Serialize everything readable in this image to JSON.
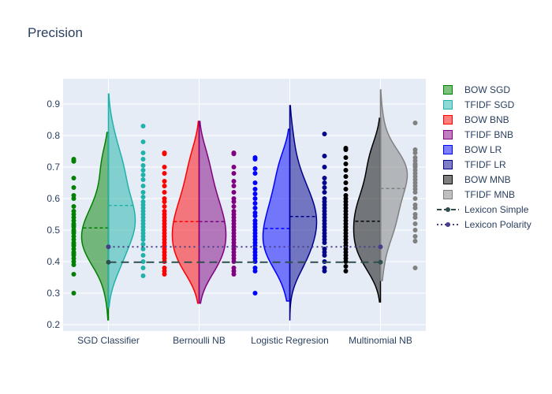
{
  "chart_data": {
    "type": "violin",
    "title": "Precision",
    "categories": [
      "SGD Classifier",
      "Bernoulli NB",
      "Logistic Regresion",
      "Multinomial NB"
    ],
    "yticks": [
      0.2,
      0.3,
      0.4,
      0.5,
      0.6,
      0.7,
      0.8,
      0.9
    ],
    "ylim": [
      0.18,
      0.98
    ],
    "grid": true,
    "legend_position": "right",
    "series": [
      {
        "name": "BOW SGD",
        "category": 0,
        "side": "negative",
        "color": "#008000",
        "fill": "rgba(0,128,0,0.5)",
        "mean": 0.507,
        "range": [
          0.215,
          0.81
        ],
        "points": [
          0.72,
          0.725,
          0.718,
          0.665,
          0.635,
          0.61,
          0.6,
          0.575,
          0.56,
          0.55,
          0.54,
          0.53,
          0.52,
          0.515,
          0.51,
          0.5,
          0.495,
          0.49,
          0.48,
          0.47,
          0.46,
          0.455,
          0.45,
          0.44,
          0.43,
          0.425,
          0.42,
          0.41,
          0.4,
          0.39,
          0.36,
          0.3
        ]
      },
      {
        "name": "TFIDF SGD",
        "category": 0,
        "side": "positive",
        "color": "#20b2aa",
        "fill": "rgba(32,178,170,0.5)",
        "mean": 0.578,
        "range": [
          0.255,
          0.932
        ],
        "points": [
          0.83,
          0.78,
          0.745,
          0.725,
          0.705,
          0.69,
          0.675,
          0.66,
          0.64,
          0.62,
          0.605,
          0.59,
          0.58,
          0.57,
          0.56,
          0.55,
          0.54,
          0.53,
          0.52,
          0.51,
          0.5,
          0.49,
          0.48,
          0.47,
          0.455,
          0.44,
          0.42,
          0.4,
          0.38,
          0.355
        ]
      },
      {
        "name": "BOW BNB",
        "category": 1,
        "side": "negative",
        "color": "#ff0000",
        "fill": "rgba(255,0,0,0.5)",
        "mean": 0.527,
        "range": [
          0.268,
          0.845
        ],
        "points": [
          0.745,
          0.742,
          0.7,
          0.68,
          0.655,
          0.64,
          0.62,
          0.6,
          0.59,
          0.575,
          0.56,
          0.55,
          0.54,
          0.53,
          0.52,
          0.51,
          0.5,
          0.49,
          0.48,
          0.47,
          0.46,
          0.45,
          0.44,
          0.43,
          0.42,
          0.41,
          0.4,
          0.38,
          0.37,
          0.36
        ]
      },
      {
        "name": "TFIDF BNB",
        "category": 1,
        "side": "positive",
        "color": "#800080",
        "fill": "rgba(128,0,128,0.5)",
        "mean": 0.527,
        "range": [
          0.268,
          0.845
        ],
        "points": [
          0.745,
          0.742,
          0.7,
          0.68,
          0.655,
          0.64,
          0.62,
          0.6,
          0.59,
          0.575,
          0.56,
          0.55,
          0.54,
          0.53,
          0.52,
          0.51,
          0.5,
          0.49,
          0.48,
          0.47,
          0.46,
          0.45,
          0.44,
          0.43,
          0.42,
          0.41,
          0.4,
          0.38,
          0.37,
          0.36
        ]
      },
      {
        "name": "BOW LR",
        "category": 2,
        "side": "negative",
        "color": "#0000ff",
        "fill": "rgba(0,0,255,0.5)",
        "mean": 0.505,
        "range": [
          0.275,
          0.82
        ],
        "points": [
          0.73,
          0.725,
          0.695,
          0.68,
          0.65,
          0.63,
          0.615,
          0.6,
          0.585,
          0.57,
          0.555,
          0.545,
          0.53,
          0.52,
          0.51,
          0.5,
          0.49,
          0.48,
          0.47,
          0.46,
          0.45,
          0.44,
          0.43,
          0.42,
          0.41,
          0.4,
          0.38,
          0.37,
          0.3
        ]
      },
      {
        "name": "TFIDF LR",
        "category": 2,
        "side": "positive",
        "color": "#00008b",
        "fill": "rgba(0,0,139,0.5)",
        "mean": 0.543,
        "range": [
          0.215,
          0.895
        ],
        "points": [
          0.805,
          0.735,
          0.7,
          0.665,
          0.65,
          0.635,
          0.62,
          0.6,
          0.59,
          0.58,
          0.57,
          0.56,
          0.55,
          0.54,
          0.53,
          0.52,
          0.51,
          0.5,
          0.49,
          0.48,
          0.47,
          0.46,
          0.44,
          0.43,
          0.42,
          0.4,
          0.38,
          0.37
        ]
      },
      {
        "name": "BOW MNB",
        "category": 3,
        "side": "negative",
        "color": "#000000",
        "fill": "rgba(0,0,0,0.5)",
        "mean": 0.528,
        "range": [
          0.272,
          0.855
        ],
        "points": [
          0.76,
          0.755,
          0.73,
          0.71,
          0.69,
          0.67,
          0.65,
          0.63,
          0.61,
          0.6,
          0.59,
          0.58,
          0.57,
          0.56,
          0.55,
          0.54,
          0.53,
          0.52,
          0.51,
          0.5,
          0.49,
          0.48,
          0.47,
          0.46,
          0.45,
          0.44,
          0.43,
          0.42,
          0.41,
          0.4,
          0.385,
          0.37
        ]
      },
      {
        "name": "TFIDF MNB",
        "category": 3,
        "side": "positive",
        "color": "#808080",
        "fill": "rgba(128,128,128,0.5)",
        "mean": 0.632,
        "range": [
          0.34,
          0.945
        ],
        "points": [
          0.84,
          0.755,
          0.745,
          0.73,
          0.72,
          0.71,
          0.705,
          0.7,
          0.69,
          0.68,
          0.67,
          0.66,
          0.65,
          0.64,
          0.63,
          0.62,
          0.6,
          0.58,
          0.57,
          0.55,
          0.54,
          0.52,
          0.5,
          0.48,
          0.465,
          0.38
        ]
      }
    ],
    "lines": [
      {
        "name": "Lexicon Simple",
        "color": "#2f4f4f",
        "dash": "dash",
        "x": [
          "SGD Classifier",
          "Multinomial NB"
        ],
        "y": [
          0.398,
          0.398
        ]
      },
      {
        "name": "Lexicon Polarity",
        "color": "#483d8b",
        "dash": "dot",
        "x": [
          "SGD Classifier",
          "Multinomial NB"
        ],
        "y": [
          0.447,
          0.447
        ]
      }
    ]
  }
}
